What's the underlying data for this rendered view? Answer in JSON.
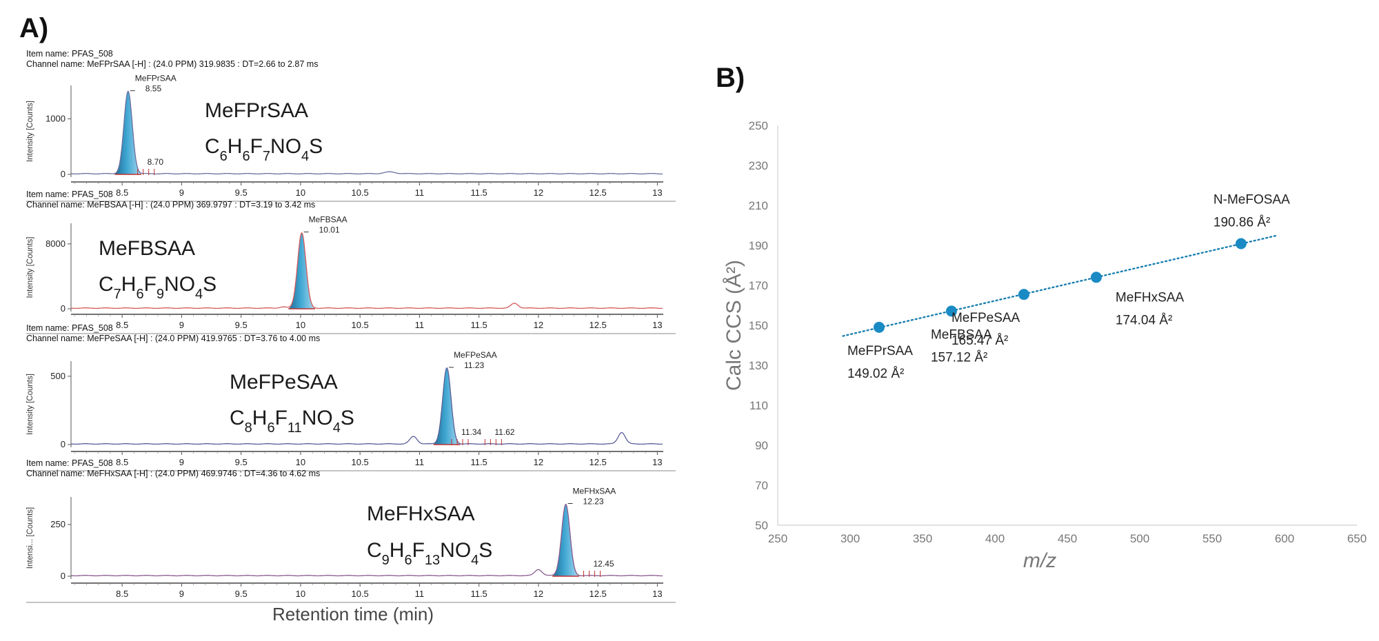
{
  "panel_a": {
    "label": "A)",
    "x_axis_label": "Retention time (min)",
    "chromatograms": [
      {
        "item_name": "Item name: PFAS_508",
        "channel_name": "Channel name: MeFPrSAA [-H] : (24.0 PPM) 319.9835 : DT=2.66 to 2.87 ms",
        "y_label": "Intensity [Counts]",
        "y_ticks": [
          "0",
          "1000"
        ],
        "y_tick_values": [
          0,
          1000
        ],
        "y_max": 1550,
        "compound_name": "MeFPrSAA",
        "formula": [
          [
            "C",
            ""
          ],
          [
            "H",
            "6"
          ],
          [
            "F",
            "7"
          ],
          [
            "NO",
            "4"
          ],
          [
            "S",
            ""
          ]
        ],
        "formula_subs": {
          "C": "6"
        },
        "formula_text": "C6H6F7NO4S",
        "peak_label_name": "MeFPrSAA",
        "peak_label_rt": "8.55",
        "peak": {
          "rt": 8.55,
          "height": 1480,
          "width": 0.035
        },
        "secondary_labels": [
          "8.70"
        ],
        "secondary_rts": [
          8.7
        ],
        "bumps": [
          {
            "rt": 10.75,
            "height": 30,
            "width": 0.05
          }
        ],
        "line_color": "#6b6e9e"
      },
      {
        "item_name": "Item name: PFAS_508",
        "channel_name": "Channel name: MeFBSAA [-H] : (24.0 PPM) 369.9797 : DT=3.19 to 3.42 ms",
        "y_label": "Intensity [Counts]",
        "y_ticks": [
          "0",
          "8000"
        ],
        "y_tick_values": [
          0,
          8000
        ],
        "y_max": 10200,
        "compound_name": "MeFBSAA",
        "formula_text": "C7H6F9NO4S",
        "peak_label_name": "MeFBSAA",
        "peak_label_rt": "10.01",
        "peak": {
          "rt": 10.01,
          "height": 9300,
          "width": 0.035
        },
        "secondary_labels": [],
        "secondary_rts": [],
        "bumps": [
          {
            "rt": 11.8,
            "height": 600,
            "width": 0.03
          },
          {
            "rt": 9.85,
            "height": 150,
            "width": 0.03
          }
        ],
        "line_color": "#d45a5a"
      },
      {
        "item_name": "Item name: PFAS_508",
        "channel_name": "Channel name: MeFPeSAA [-H] : (24.0 PPM) 419.9765 : DT=3.76 to 4.00 ms",
        "y_label": "Intensity [Counts]",
        "y_ticks": [
          "0",
          "500"
        ],
        "y_tick_values": [
          0,
          500
        ],
        "y_max": 590,
        "compound_name": "MeFPeSAA",
        "formula_text": "C8H6F11NO4S",
        "peak_label_name": "MeFPeSAA",
        "peak_label_rt": "11.23",
        "peak": {
          "rt": 11.23,
          "height": 555,
          "width": 0.035
        },
        "secondary_labels": [
          "11.34",
          "11.62"
        ],
        "secondary_rts": [
          11.34,
          11.62
        ],
        "bumps": [
          {
            "rt": 10.95,
            "height": 55,
            "width": 0.03
          },
          {
            "rt": 12.7,
            "height": 85,
            "width": 0.03
          }
        ],
        "line_color": "#5a5e96"
      },
      {
        "item_name": "Item name: PFAS_508",
        "channel_name": "Channel name: MeFHxSAA [-H] : (24.0 PPM) 469.9746 : DT=4.36 to 4.62 ms",
        "y_label": "Intensi... [Counts]",
        "y_ticks": [
          "0",
          "250"
        ],
        "y_tick_values": [
          0,
          250
        ],
        "y_max": 370,
        "compound_name": "MeFHxSAA",
        "formula_text": "C9H6F13NO4S",
        "peak_label_name": "MeFHxSAA",
        "peak_label_rt": "12.23",
        "peak": {
          "rt": 12.23,
          "height": 345,
          "width": 0.035
        },
        "secondary_labels": [
          "12.45"
        ],
        "secondary_rts": [
          12.45
        ],
        "bumps": [
          {
            "rt": 12.0,
            "height": 30,
            "width": 0.03
          }
        ],
        "line_color": "#8a5a8e"
      }
    ],
    "x_ticks": [
      "8.5",
      "9",
      "9.5",
      "10",
      "10.5",
      "11",
      "11.5",
      "12",
      "12.5",
      "13"
    ],
    "x_tick_values": [
      8.5,
      9,
      9.5,
      10,
      10.5,
      11,
      11.5,
      12,
      12.5,
      13
    ],
    "x_range": [
      8.07,
      13.05
    ]
  },
  "panel_b": {
    "label": "B)",
    "chart_data": {
      "type": "scatter",
      "xlabel": "m/z",
      "ylabel": "Calc CCS (Å²)",
      "xlim": [
        250,
        650
      ],
      "ylim": [
        50,
        250
      ],
      "x_ticks": [
        250,
        300,
        350,
        400,
        450,
        500,
        550,
        600,
        650
      ],
      "y_ticks": [
        50,
        70,
        90,
        110,
        130,
        150,
        170,
        190,
        210,
        230,
        250
      ],
      "points": [
        {
          "name": "MeFPrSAA",
          "x": 319.98,
          "y": 149.02,
          "label": "149.02 Å²"
        },
        {
          "name": "MeFBSAA",
          "x": 369.98,
          "y": 157.12,
          "label": "157.12 Å²"
        },
        {
          "name": "MeFPeSAA",
          "x": 419.98,
          "y": 165.47,
          "label": "165.47 Å²"
        },
        {
          "name": "MeFHxSAA",
          "x": 469.97,
          "y": 174.04,
          "label": "174.04 Å²"
        },
        {
          "name": "N-MeFOSAA",
          "x": 569.97,
          "y": 190.86,
          "label": "190.86 Å²"
        }
      ],
      "trendline": {
        "style": "dotted",
        "x_range": [
          295,
          595
        ]
      },
      "marker_color": "#1a8ac4",
      "trend_color": "#1a7fb0",
      "grid": false
    }
  }
}
